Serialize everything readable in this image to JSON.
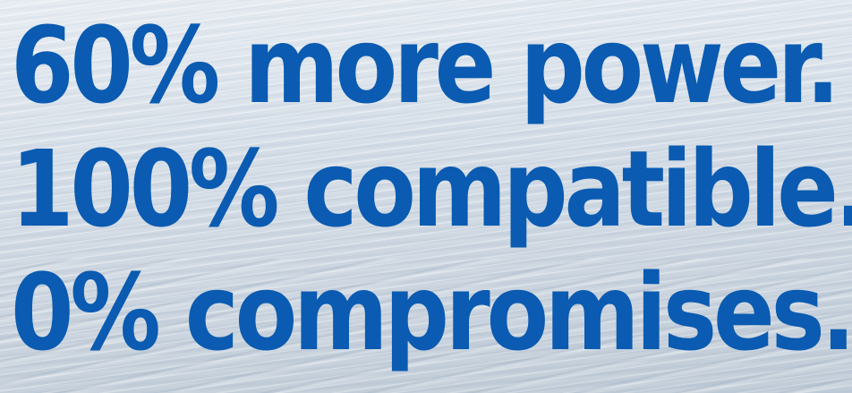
{
  "headline": {
    "lines": [
      "60% more power.",
      "100% compatible.",
      "0% compromises."
    ]
  },
  "colors": {
    "text": "#0a5bb1",
    "background": "#d6dee8"
  }
}
